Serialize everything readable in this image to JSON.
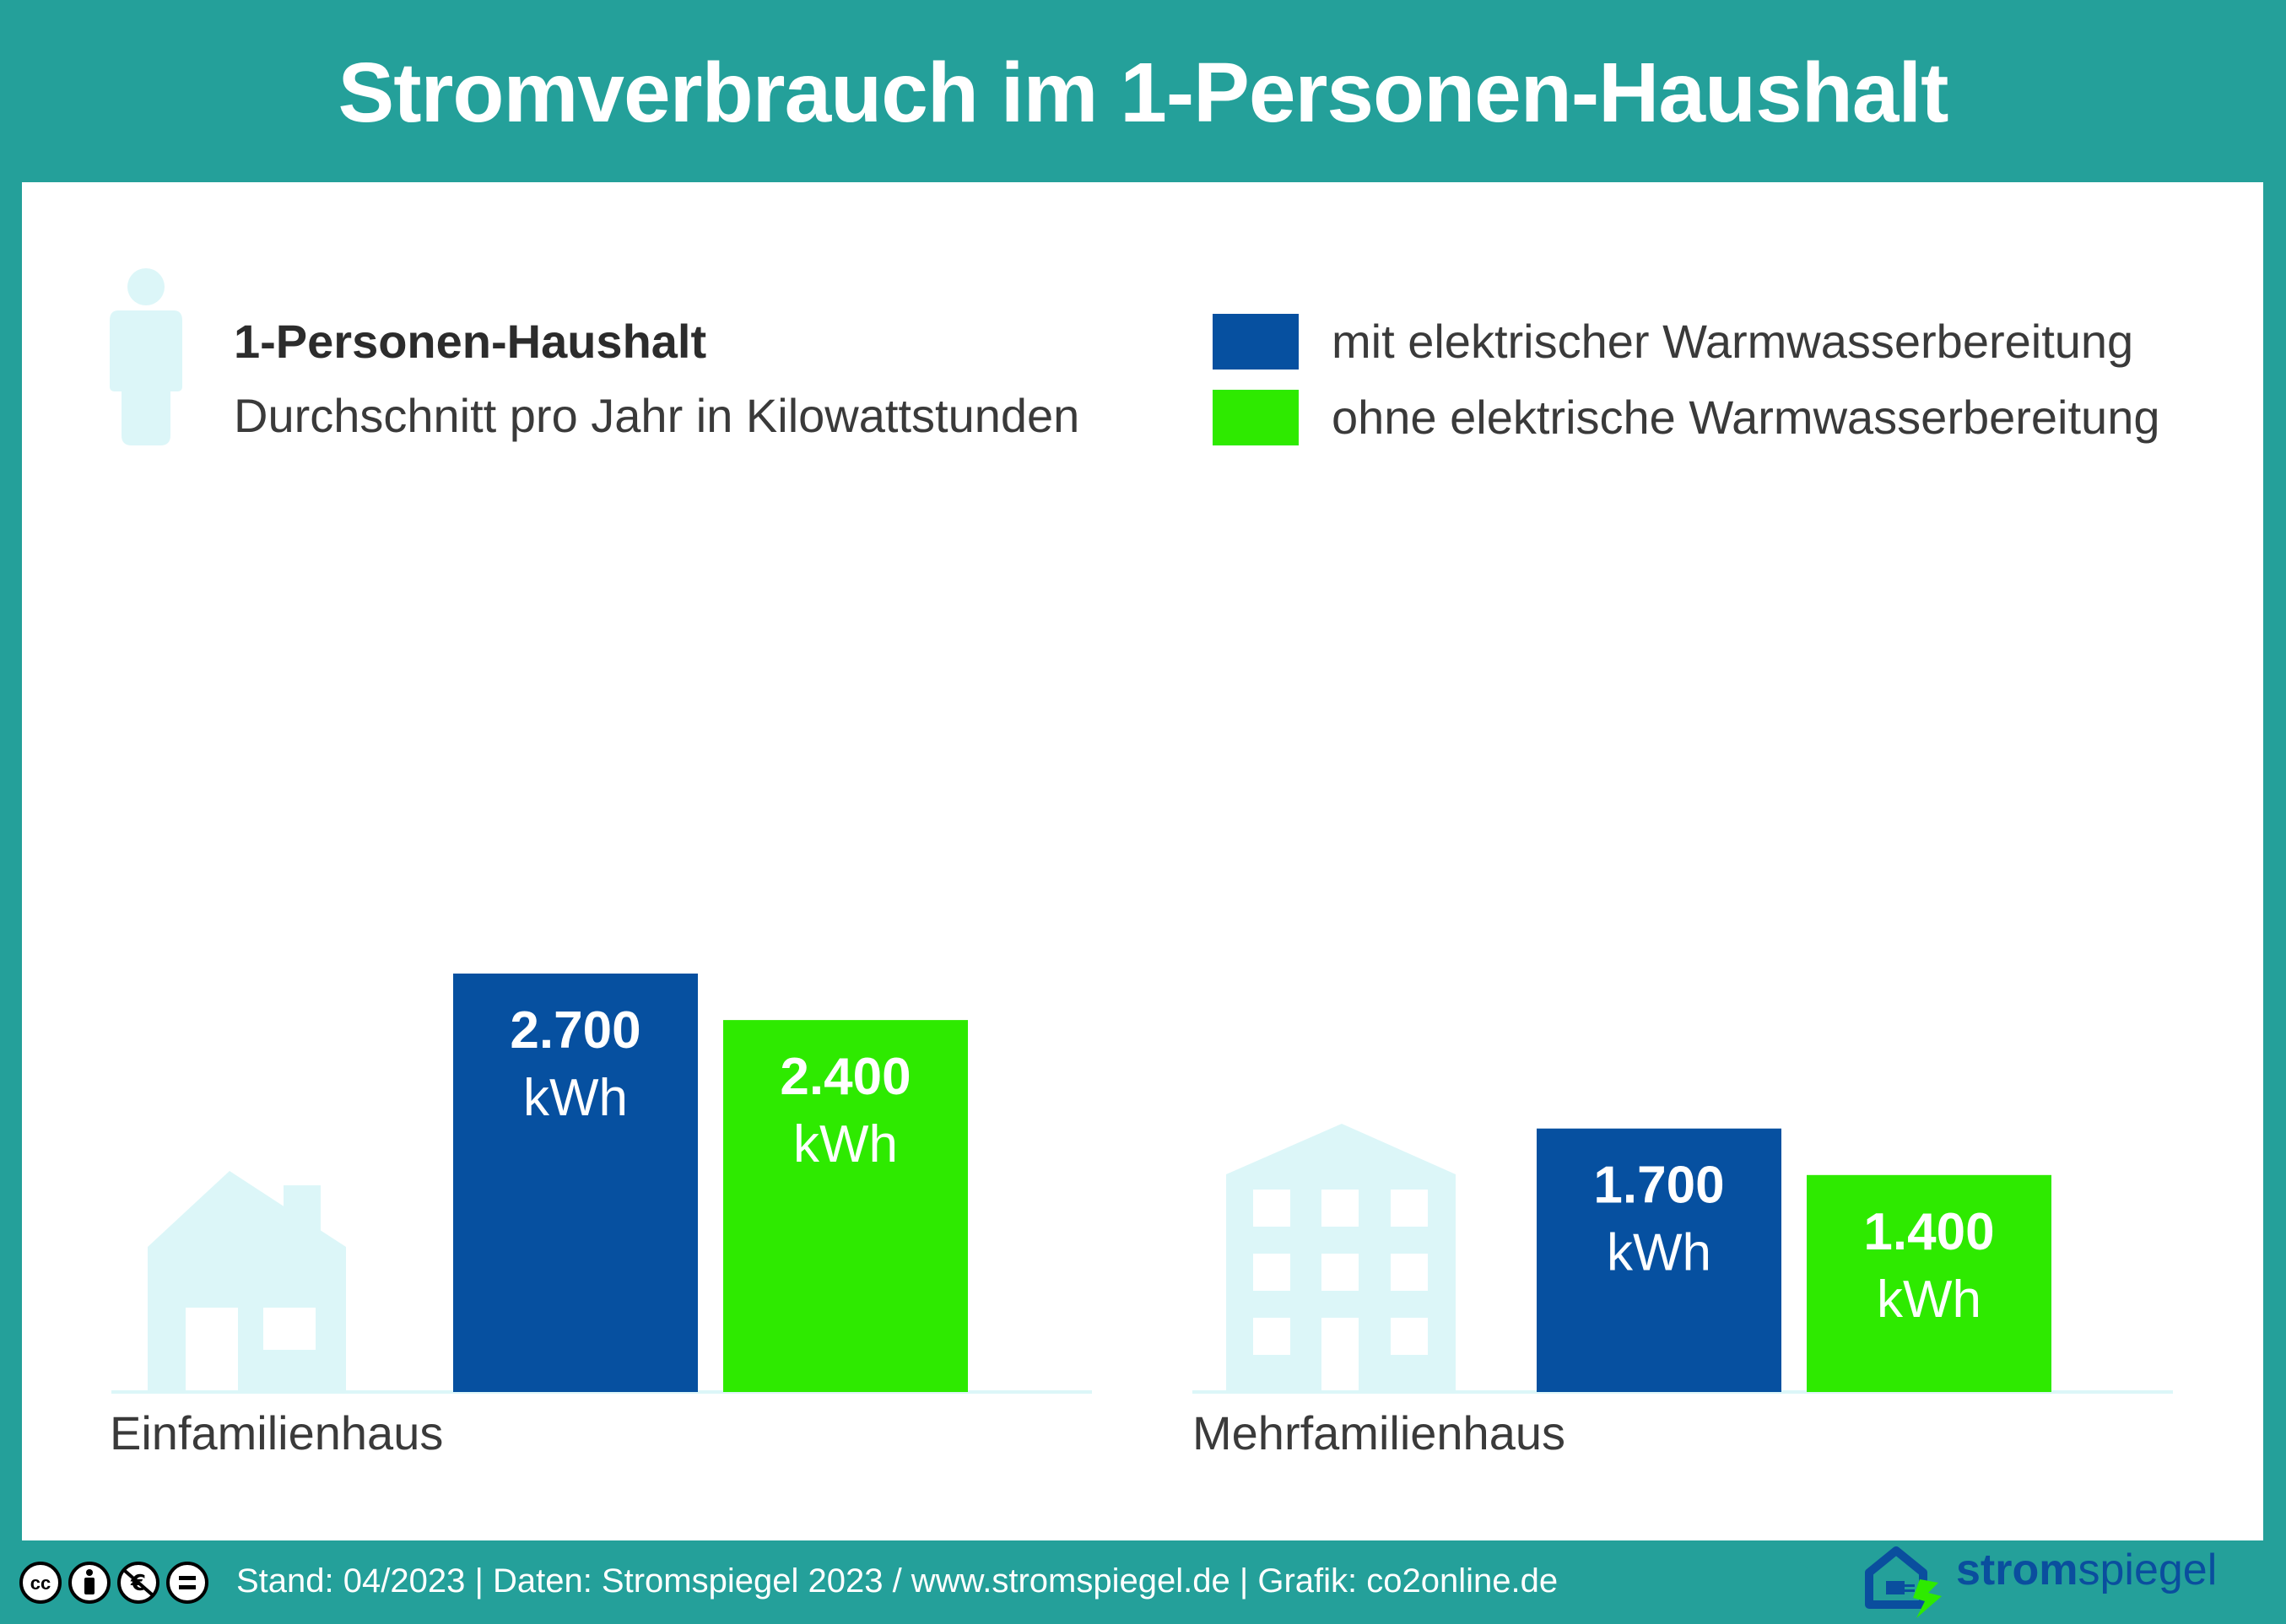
{
  "title": "Stromverbrauch im 1-Personen-Haushalt",
  "legend": {
    "title": "1-Personen-Haushalt",
    "subtitle": "Durchschnitt pro Jahr in Kilowattstunden",
    "items": [
      {
        "label": "mit elektrischer Warmwasserbereitung",
        "color": "#0650a0"
      },
      {
        "label": "ohne elektrische Warmwasserbereitung",
        "color": "#2eea00"
      }
    ]
  },
  "chart_data": {
    "type": "bar",
    "categories": [
      "Einfamilienhaus",
      "Mehrfamilienhaus"
    ],
    "series": [
      {
        "name": "mit elektrischer Warmwasserbereitung",
        "values": [
          2700,
          1700
        ],
        "labels": [
          "2.700",
          "1.700"
        ],
        "color": "#0650a0"
      },
      {
        "name": "ohne elektrische Warmwasserbereitung",
        "values": [
          2400,
          1400
        ],
        "labels": [
          "2.400",
          "1.400"
        ],
        "color": "#2eea00"
      }
    ],
    "unit": "kWh",
    "ylim": [
      0,
      2700
    ],
    "grid": false,
    "legend": "top-right"
  },
  "footer": {
    "text": "Stand: 04/2023  |  Daten: Stromspiegel 2023 / www.stromspiegel.de  |  Grafik: co2online.de",
    "license_icons": [
      "cc-icon",
      "by-icon",
      "nc-icon",
      "nd-icon"
    ]
  },
  "logo": {
    "bold": "strom",
    "regular": "spiegel"
  },
  "colors": {
    "teal": "#24a09a",
    "icon_light": "#dcf6f8",
    "dark_blue": "#0650a0",
    "green": "#2eea00"
  }
}
